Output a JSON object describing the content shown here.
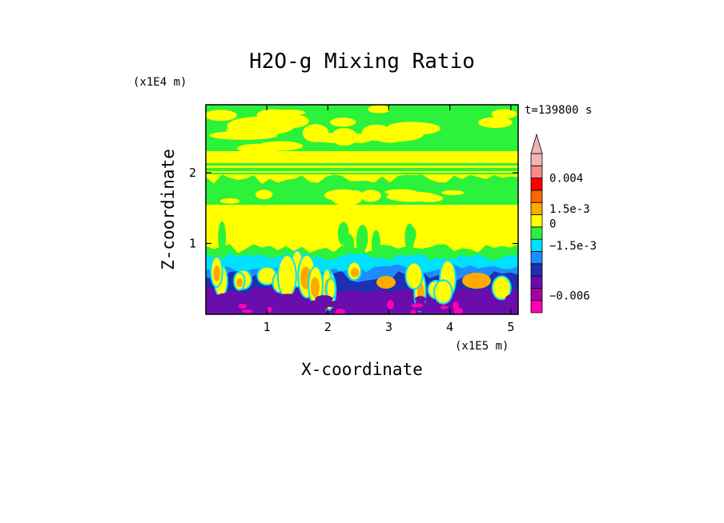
{
  "chart_data": {
    "type": "heatmap",
    "title": "H2O-g Mixing Ratio",
    "xlabel": "X-coordinate",
    "ylabel": "Z-coordinate",
    "x_unit": "(x1E5 m)",
    "y_unit": "(x1E4 m)",
    "time_label": "t=139800 s",
    "xlim": [
      0,
      5.12
    ],
    "ylim": [
      0,
      2.96
    ],
    "x_ticks": [
      {
        "value": 1,
        "label": "1"
      },
      {
        "value": 2,
        "label": "2"
      },
      {
        "value": 3,
        "label": "3"
      },
      {
        "value": 4,
        "label": "4"
      },
      {
        "value": 5,
        "label": "5"
      }
    ],
    "y_ticks": [
      {
        "value": 1,
        "label": "1"
      },
      {
        "value": 2,
        "label": "2"
      }
    ],
    "colorbar": {
      "colors": [
        "#ff00b4",
        "#a800a8",
        "#6a0dad",
        "#1e2fb4",
        "#1e8cff",
        "#00e0ff",
        "#2cf23c",
        "#ffff00",
        "#ffaa00",
        "#ff6600",
        "#ff0000",
        "#ff8a8a",
        "#f2b3b3"
      ],
      "labels": [
        {
          "text": "0.004",
          "level": 11
        },
        {
          "text": "1.5e-3",
          "level": 8.5
        },
        {
          "text": "0",
          "level": 7.3
        },
        {
          "text": "−1.5e-3",
          "level": 5.5
        },
        {
          "text": "−0.006",
          "level": 1.4
        }
      ]
    }
  }
}
